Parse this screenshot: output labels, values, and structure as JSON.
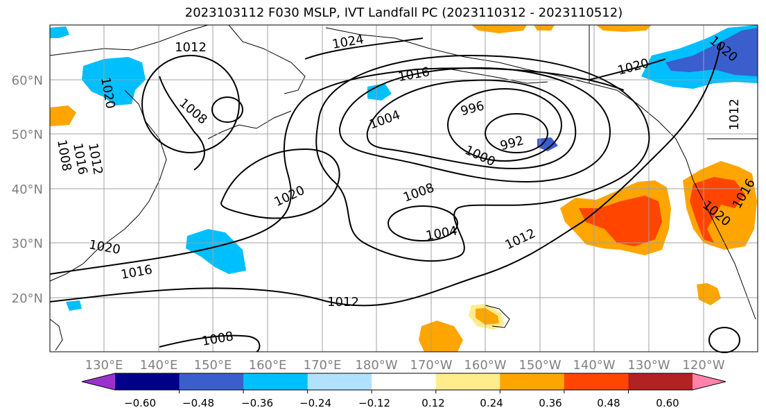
{
  "title": "2023103112 F030 MSLP, IVT Landfall PC (2023110312 - 2023110512)",
  "lon_ticks": [
    "130°E",
    "140°E",
    "150°E",
    "160°E",
    "170°E",
    "180°W",
    "170°W",
    "160°W",
    "150°W",
    "140°W",
    "130°W",
    "120°W"
  ],
  "lat_ticks": [
    "60°N",
    "50°N",
    "40°N",
    "30°N",
    "20°N"
  ],
  "colorbar": {
    "colors": [
      "#9932cc",
      "#00008b",
      "#3a5fcd",
      "#00bfff",
      "#b0e2ff",
      "#ffffff",
      "#ffec8b",
      "#ffa500",
      "#ff4500",
      "#b22222",
      "#ff82ab"
    ],
    "labels": [
      "−0.60",
      "−0.48",
      "−0.36",
      "−0.24",
      "−0.12",
      "0.12",
      "0.24",
      "0.36",
      "0.48",
      "0.60"
    ]
  },
  "contour_labels": [
    "1012",
    "1024",
    "1016",
    "1020",
    "1008",
    "1004",
    "996",
    "992",
    "1000",
    "1020",
    "1008",
    "1004",
    "1012",
    "1020",
    "1016",
    "1012",
    "1008",
    "1020",
    "1020",
    "1016",
    "1012",
    "1008",
    "1012",
    "1016",
    "1020"
  ]
}
